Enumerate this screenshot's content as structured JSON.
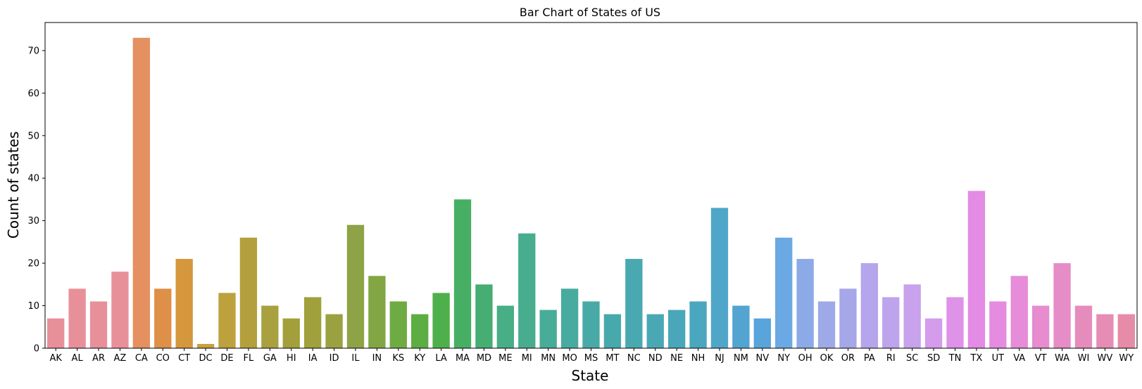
{
  "chart_data": {
    "type": "bar",
    "title": "Bar Chart of States of US",
    "xlabel": "State",
    "ylabel": "Count of states",
    "ylim": [
      0,
      76.6
    ],
    "yticks": [
      0,
      10,
      20,
      30,
      40,
      50,
      60,
      70
    ],
    "grid": false,
    "categories": [
      "AK",
      "AL",
      "AR",
      "AZ",
      "CA",
      "CO",
      "CT",
      "DC",
      "DE",
      "FL",
      "GA",
      "HI",
      "IA",
      "ID",
      "IL",
      "IN",
      "KS",
      "KY",
      "LA",
      "MA",
      "MD",
      "ME",
      "MI",
      "MN",
      "MO",
      "MS",
      "MT",
      "NC",
      "ND",
      "NE",
      "NH",
      "NJ",
      "NM",
      "NV",
      "NY",
      "OH",
      "OK",
      "OR",
      "PA",
      "RI",
      "SC",
      "SD",
      "TN",
      "TX",
      "UT",
      "VA",
      "VT",
      "WA",
      "WI",
      "WV",
      "WY"
    ],
    "values": [
      7,
      14,
      11,
      18,
      73,
      14,
      21,
      1,
      13,
      26,
      10,
      7,
      12,
      8,
      29,
      17,
      11,
      8,
      13,
      35,
      15,
      10,
      27,
      9,
      14,
      11,
      8,
      21,
      8,
      9,
      11,
      33,
      10,
      7,
      26,
      21,
      11,
      14,
      20,
      12,
      15,
      7,
      12,
      37,
      11,
      17,
      10,
      20,
      10,
      8,
      8
    ],
    "colors": [
      "#e8909a",
      "#e8909a",
      "#e8909a",
      "#e8909a",
      "#e59060",
      "#de8f48",
      "#d5973c",
      "#c9a03a",
      "#bda13c",
      "#b39f3c",
      "#a9a13f",
      "#a3a03c",
      "#a0a03c",
      "#9aa140",
      "#8ea346",
      "#82a643",
      "#6fab43",
      "#5cad42",
      "#4eb04a",
      "#47af64",
      "#46ae73",
      "#47ae86",
      "#47ad8e",
      "#47ac98",
      "#48ab9f",
      "#48aaa6",
      "#48a9ac",
      "#49a9b0",
      "#4aa8b5",
      "#4aa7ba",
      "#4ba6bf",
      "#4fa6c8",
      "#53a4d0",
      "#58a4db",
      "#6aa9e3",
      "#8caae8",
      "#9eaae8",
      "#a5a7e8",
      "#b4a5ec",
      "#bea4ec",
      "#c8a2ec",
      "#d49ceb",
      "#de92e8",
      "#e38be5",
      "#e68ce0",
      "#e68cd8",
      "#e68ccf",
      "#e68cc6",
      "#e68cbd",
      "#e68cb5",
      "#e68ca8"
    ]
  }
}
